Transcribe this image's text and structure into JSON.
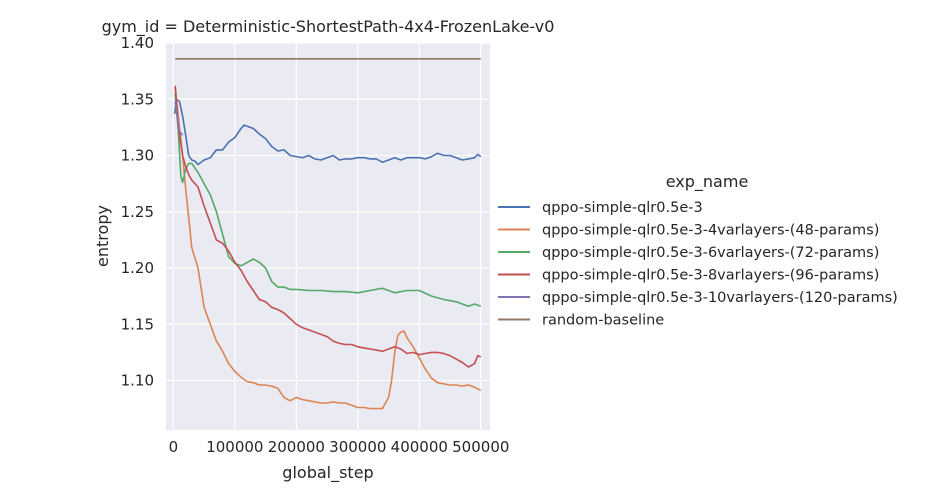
{
  "chart_data": {
    "type": "line",
    "title": "gym_id = Deterministic-ShortestPath-4x4-FrozenLake-v0",
    "xlabel": "global_step",
    "ylabel": "entropy",
    "xlim": [
      -12000,
      515000
    ],
    "ylim": [
      1.056,
      1.4
    ],
    "xticks": [
      0,
      100000,
      200000,
      300000,
      400000,
      500000
    ],
    "xtick_labels": [
      "0",
      "100000",
      "200000",
      "300000",
      "400000",
      "500000"
    ],
    "yticks": [
      1.1,
      1.15,
      1.2,
      1.25,
      1.3,
      1.35,
      1.4
    ],
    "ytick_labels": [
      "1.10",
      "1.15",
      "1.20",
      "1.25",
      "1.30",
      "1.35",
      "1.40"
    ],
    "grid": true,
    "legend": {
      "title": "exp_name",
      "placement": "right"
    },
    "series": [
      {
        "name": "qppo-simple-qlr0.5e-3",
        "color": "#4c72b0",
        "x": [
          2000,
          5000,
          10000,
          15000,
          20000,
          25000,
          30000,
          35000,
          40000,
          50000,
          60000,
          70000,
          80000,
          90000,
          100000,
          110000,
          115000,
          120000,
          130000,
          140000,
          150000,
          160000,
          170000,
          180000,
          190000,
          200000,
          210000,
          220000,
          230000,
          240000,
          250000,
          260000,
          270000,
          280000,
          290000,
          300000,
          310000,
          320000,
          330000,
          340000,
          350000,
          360000,
          370000,
          380000,
          390000,
          400000,
          410000,
          420000,
          430000,
          440000,
          450000,
          460000,
          470000,
          480000,
          490000,
          495000,
          500000
        ],
        "y": [
          1.337,
          1.35,
          1.348,
          1.335,
          1.318,
          1.3,
          1.296,
          1.295,
          1.292,
          1.296,
          1.298,
          1.305,
          1.305,
          1.312,
          1.316,
          1.324,
          1.327,
          1.326,
          1.324,
          1.319,
          1.315,
          1.308,
          1.304,
          1.305,
          1.3,
          1.299,
          1.298,
          1.3,
          1.297,
          1.296,
          1.298,
          1.3,
          1.296,
          1.297,
          1.297,
          1.298,
          1.298,
          1.297,
          1.297,
          1.294,
          1.296,
          1.298,
          1.296,
          1.298,
          1.298,
          1.298,
          1.297,
          1.299,
          1.302,
          1.3,
          1.3,
          1.298,
          1.296,
          1.297,
          1.298,
          1.301,
          1.299
        ]
      },
      {
        "name": "qppo-simple-qlr0.5e-3-4varlayers-(48-params)",
        "color": "#dd8452",
        "x": [
          3000,
          8000,
          15000,
          20000,
          25000,
          30000,
          40000,
          50000,
          60000,
          70000,
          80000,
          90000,
          100000,
          110000,
          120000,
          130000,
          140000,
          150000,
          160000,
          170000,
          180000,
          190000,
          200000,
          210000,
          220000,
          230000,
          240000,
          250000,
          260000,
          270000,
          280000,
          290000,
          300000,
          310000,
          320000,
          330000,
          340000,
          350000,
          355000,
          360000,
          365000,
          370000,
          375000,
          380000,
          390000,
          400000,
          410000,
          420000,
          430000,
          440000,
          450000,
          460000,
          470000,
          480000,
          490000,
          500000
        ],
        "y": [
          1.36,
          1.335,
          1.3,
          1.27,
          1.245,
          1.218,
          1.2,
          1.165,
          1.15,
          1.135,
          1.126,
          1.115,
          1.108,
          1.103,
          1.099,
          1.098,
          1.096,
          1.096,
          1.095,
          1.093,
          1.085,
          1.082,
          1.085,
          1.083,
          1.082,
          1.081,
          1.08,
          1.08,
          1.081,
          1.08,
          1.08,
          1.078,
          1.076,
          1.076,
          1.075,
          1.075,
          1.075,
          1.085,
          1.1,
          1.125,
          1.14,
          1.143,
          1.144,
          1.138,
          1.13,
          1.12,
          1.11,
          1.102,
          1.098,
          1.097,
          1.096,
          1.096,
          1.095,
          1.096,
          1.094,
          1.091
        ]
      },
      {
        "name": "qppo-simple-qlr0.5e-3-6varlayers-(72-params)",
        "color": "#55a868",
        "x": [
          3000,
          8000,
          12000,
          15000,
          20000,
          25000,
          30000,
          40000,
          50000,
          60000,
          70000,
          80000,
          90000,
          100000,
          110000,
          120000,
          130000,
          140000,
          150000,
          160000,
          170000,
          180000,
          190000,
          200000,
          220000,
          240000,
          260000,
          280000,
          300000,
          320000,
          340000,
          360000,
          380000,
          400000,
          420000,
          440000,
          460000,
          480000,
          490000,
          500000
        ],
        "y": [
          1.355,
          1.322,
          1.282,
          1.276,
          1.288,
          1.293,
          1.293,
          1.285,
          1.275,
          1.265,
          1.25,
          1.23,
          1.21,
          1.204,
          1.202,
          1.205,
          1.208,
          1.205,
          1.2,
          1.188,
          1.183,
          1.183,
          1.181,
          1.181,
          1.18,
          1.18,
          1.179,
          1.179,
          1.178,
          1.18,
          1.182,
          1.178,
          1.18,
          1.18,
          1.175,
          1.172,
          1.17,
          1.166,
          1.168,
          1.166
        ]
      },
      {
        "name": "qppo-simple-qlr0.5e-3-8varlayers-(96-params)",
        "color": "#c44e52",
        "x": [
          3000,
          8000,
          15000,
          20000,
          25000,
          30000,
          40000,
          50000,
          60000,
          70000,
          80000,
          90000,
          100000,
          110000,
          120000,
          130000,
          140000,
          150000,
          160000,
          170000,
          180000,
          190000,
          200000,
          210000,
          220000,
          230000,
          240000,
          250000,
          260000,
          270000,
          280000,
          290000,
          300000,
          310000,
          320000,
          330000,
          340000,
          350000,
          360000,
          370000,
          380000,
          390000,
          400000,
          410000,
          420000,
          430000,
          440000,
          450000,
          460000,
          470000,
          480000,
          490000,
          495000,
          500000
        ],
        "y": [
          1.362,
          1.325,
          1.3,
          1.29,
          1.283,
          1.278,
          1.272,
          1.255,
          1.24,
          1.225,
          1.222,
          1.215,
          1.205,
          1.198,
          1.188,
          1.18,
          1.172,
          1.17,
          1.165,
          1.163,
          1.16,
          1.155,
          1.15,
          1.147,
          1.145,
          1.143,
          1.141,
          1.139,
          1.135,
          1.133,
          1.132,
          1.132,
          1.13,
          1.129,
          1.128,
          1.127,
          1.126,
          1.128,
          1.13,
          1.128,
          1.124,
          1.125,
          1.123,
          1.124,
          1.125,
          1.125,
          1.124,
          1.122,
          1.119,
          1.116,
          1.112,
          1.115,
          1.122,
          1.121
        ]
      },
      {
        "name": "qppo-simple-qlr0.5e-3-10varlayers-(120-params)",
        "color": "#8172b3",
        "x": [
          3000,
          6000,
          9000,
          12000,
          15000
        ],
        "y": [
          1.348,
          1.335,
          1.322,
          1.32,
          1.318
        ]
      },
      {
        "name": "random-baseline",
        "color": "#937860",
        "x": [
          3000,
          500000
        ],
        "y": [
          1.386,
          1.386
        ]
      }
    ]
  }
}
